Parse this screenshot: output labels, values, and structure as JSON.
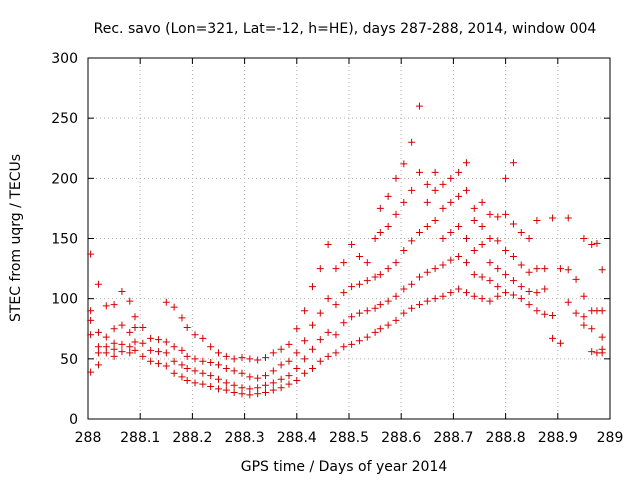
{
  "chart_data": {
    "type": "scatter",
    "title": "Rec. savo (Lon=321, Lat=-12, h=HE), days 287-288, 2014, window 004",
    "xlabel": "GPS time / Days of year 2014",
    "ylabel": "STEC from uqrg / TECUs",
    "xlim": [
      288,
      289
    ],
    "ylim": [
      0,
      300
    ],
    "xticks": [
      288,
      288.1,
      288.2,
      288.3,
      288.4,
      288.5,
      288.6,
      288.7,
      288.8,
      288.9,
      289
    ],
    "xtick_labels": [
      "288",
      "288.1",
      "288.2",
      "288.3",
      "288.4",
      "288.5",
      "288.6",
      "288.7",
      "288.8",
      "288.9",
      "289"
    ],
    "yticks": [
      0,
      50,
      100,
      150,
      200,
      250,
      300
    ],
    "ytick_labels": [
      "0",
      "50",
      "100",
      "150",
      "200",
      "250",
      "300"
    ],
    "grid": true,
    "marker": "+",
    "color": "#d40000",
    "series": [
      {
        "points": [
          [
            288.005,
            137
          ],
          [
            288.005,
            90
          ],
          [
            288.005,
            82
          ],
          [
            288.005,
            70
          ],
          [
            288.005,
            39
          ],
          [
            288.02,
            112
          ],
          [
            288.02,
            72
          ],
          [
            288.02,
            60
          ],
          [
            288.02,
            55
          ],
          [
            288.02,
            45
          ],
          [
            288.035,
            94
          ],
          [
            288.035,
            68
          ],
          [
            288.035,
            60
          ],
          [
            288.035,
            55
          ],
          [
            288.05,
            95
          ],
          [
            288.05,
            75
          ],
          [
            288.05,
            63
          ],
          [
            288.05,
            58
          ],
          [
            288.05,
            52
          ],
          [
            288.065,
            106
          ],
          [
            288.065,
            78
          ],
          [
            288.065,
            62
          ],
          [
            288.065,
            56
          ],
          [
            288.08,
            98
          ],
          [
            288.08,
            72
          ],
          [
            288.08,
            60
          ],
          [
            288.08,
            55
          ],
          [
            288.09,
            85
          ],
          [
            288.09,
            76
          ],
          [
            288.09,
            64
          ],
          [
            288.09,
            57
          ],
          [
            288.105,
            76
          ],
          [
            288.105,
            63
          ],
          [
            288.105,
            52
          ],
          [
            288.12,
            67
          ],
          [
            288.12,
            57
          ],
          [
            288.12,
            48
          ],
          [
            288.135,
            66
          ],
          [
            288.135,
            56
          ],
          [
            288.135,
            46
          ],
          [
            288.15,
            97
          ],
          [
            288.15,
            64
          ],
          [
            288.15,
            55
          ],
          [
            288.15,
            44
          ],
          [
            288.165,
            93
          ],
          [
            288.165,
            60
          ],
          [
            288.165,
            48
          ],
          [
            288.165,
            38
          ],
          [
            288.18,
            84
          ],
          [
            288.18,
            57
          ],
          [
            288.18,
            45
          ],
          [
            288.18,
            35
          ],
          [
            288.19,
            76
          ],
          [
            288.19,
            52
          ],
          [
            288.19,
            42
          ],
          [
            288.19,
            32
          ],
          [
            288.205,
            70
          ],
          [
            288.205,
            50
          ],
          [
            288.205,
            40
          ],
          [
            288.205,
            30
          ],
          [
            288.22,
            67
          ],
          [
            288.22,
            48
          ],
          [
            288.22,
            38
          ],
          [
            288.22,
            29
          ],
          [
            288.235,
            60
          ],
          [
            288.235,
            47
          ],
          [
            288.235,
            36
          ],
          [
            288.235,
            27
          ],
          [
            288.25,
            55
          ],
          [
            288.25,
            45
          ],
          [
            288.25,
            33
          ],
          [
            288.25,
            25
          ],
          [
            288.265,
            52
          ],
          [
            288.265,
            42
          ],
          [
            288.265,
            30
          ],
          [
            288.265,
            24
          ],
          [
            288.28,
            50
          ],
          [
            288.28,
            40
          ],
          [
            288.28,
            28
          ],
          [
            288.28,
            22
          ],
          [
            288.295,
            51
          ],
          [
            288.295,
            38
          ],
          [
            288.295,
            26
          ],
          [
            288.295,
            21
          ],
          [
            288.31,
            50
          ],
          [
            288.31,
            35
          ],
          [
            288.31,
            25
          ],
          [
            288.31,
            20
          ],
          [
            288.325,
            49
          ],
          [
            288.325,
            34
          ],
          [
            288.325,
            26
          ],
          [
            288.325,
            21
          ],
          [
            288.34,
            51
          ],
          [
            288.34,
            36
          ],
          [
            288.34,
            28
          ],
          [
            288.34,
            22
          ],
          [
            288.355,
            55
          ],
          [
            288.355,
            40
          ],
          [
            288.355,
            30
          ],
          [
            288.355,
            24
          ],
          [
            288.37,
            58
          ],
          [
            288.37,
            45
          ],
          [
            288.37,
            33
          ],
          [
            288.37,
            26
          ],
          [
            288.385,
            62
          ],
          [
            288.385,
            48
          ],
          [
            288.385,
            36
          ],
          [
            288.385,
            29
          ],
          [
            288.4,
            75
          ],
          [
            288.4,
            55
          ],
          [
            288.4,
            42
          ],
          [
            288.4,
            32
          ],
          [
            288.415,
            90
          ],
          [
            288.415,
            65
          ],
          [
            288.415,
            50
          ],
          [
            288.415,
            38
          ],
          [
            288.43,
            110
          ],
          [
            288.43,
            78
          ],
          [
            288.43,
            58
          ],
          [
            288.43,
            42
          ],
          [
            288.445,
            125
          ],
          [
            288.445,
            88
          ],
          [
            288.445,
            66
          ],
          [
            288.445,
            48
          ],
          [
            288.46,
            145
          ],
          [
            288.46,
            100
          ],
          [
            288.46,
            72
          ],
          [
            288.46,
            52
          ],
          [
            288.475,
            125
          ],
          [
            288.475,
            95
          ],
          [
            288.475,
            70
          ],
          [
            288.475,
            55
          ],
          [
            288.49,
            130
          ],
          [
            288.49,
            105
          ],
          [
            288.49,
            80
          ],
          [
            288.49,
            60
          ],
          [
            288.505,
            145
          ],
          [
            288.505,
            110
          ],
          [
            288.505,
            85
          ],
          [
            288.505,
            62
          ],
          [
            288.52,
            135
          ],
          [
            288.52,
            112
          ],
          [
            288.52,
            88
          ],
          [
            288.52,
            65
          ],
          [
            288.535,
            130
          ],
          [
            288.535,
            115
          ],
          [
            288.535,
            90
          ],
          [
            288.535,
            68
          ],
          [
            288.55,
            150
          ],
          [
            288.55,
            118
          ],
          [
            288.55,
            92
          ],
          [
            288.55,
            72
          ],
          [
            288.56,
            175
          ],
          [
            288.56,
            155
          ],
          [
            288.56,
            120
          ],
          [
            288.56,
            95
          ],
          [
            288.56,
            75
          ],
          [
            288.575,
            185
          ],
          [
            288.575,
            160
          ],
          [
            288.575,
            125
          ],
          [
            288.575,
            98
          ],
          [
            288.575,
            78
          ],
          [
            288.59,
            200
          ],
          [
            288.59,
            170
          ],
          [
            288.59,
            130
          ],
          [
            288.59,
            102
          ],
          [
            288.59,
            82
          ],
          [
            288.605,
            212
          ],
          [
            288.605,
            180
          ],
          [
            288.605,
            140
          ],
          [
            288.605,
            108
          ],
          [
            288.605,
            88
          ],
          [
            288.62,
            230
          ],
          [
            288.62,
            190
          ],
          [
            288.62,
            148
          ],
          [
            288.62,
            112
          ],
          [
            288.62,
            92
          ],
          [
            288.635,
            260
          ],
          [
            288.635,
            205
          ],
          [
            288.635,
            155
          ],
          [
            288.635,
            118
          ],
          [
            288.635,
            95
          ],
          [
            288.65,
            195
          ],
          [
            288.65,
            180
          ],
          [
            288.65,
            160
          ],
          [
            288.65,
            122
          ],
          [
            288.65,
            98
          ],
          [
            288.665,
            205
          ],
          [
            288.665,
            190
          ],
          [
            288.665,
            165
          ],
          [
            288.665,
            125
          ],
          [
            288.665,
            100
          ],
          [
            288.68,
            195
          ],
          [
            288.68,
            175
          ],
          [
            288.68,
            150
          ],
          [
            288.68,
            128
          ],
          [
            288.68,
            102
          ],
          [
            288.695,
            200
          ],
          [
            288.695,
            180
          ],
          [
            288.695,
            155
          ],
          [
            288.695,
            132
          ],
          [
            288.695,
            105
          ],
          [
            288.71,
            205
          ],
          [
            288.71,
            185
          ],
          [
            288.71,
            160
          ],
          [
            288.71,
            135
          ],
          [
            288.71,
            108
          ],
          [
            288.725,
            213
          ],
          [
            288.725,
            190
          ],
          [
            288.725,
            150
          ],
          [
            288.725,
            130
          ],
          [
            288.725,
            105
          ],
          [
            288.74,
            175
          ],
          [
            288.74,
            165
          ],
          [
            288.74,
            140
          ],
          [
            288.74,
            120
          ],
          [
            288.74,
            102
          ],
          [
            288.755,
            180
          ],
          [
            288.755,
            160
          ],
          [
            288.755,
            145
          ],
          [
            288.755,
            118
          ],
          [
            288.755,
            100
          ],
          [
            288.77,
            170
          ],
          [
            288.77,
            150
          ],
          [
            288.77,
            130
          ],
          [
            288.77,
            115
          ],
          [
            288.77,
            98
          ],
          [
            288.785,
            168
          ],
          [
            288.785,
            148
          ],
          [
            288.785,
            125
          ],
          [
            288.785,
            110
          ],
          [
            288.785,
            102
          ],
          [
            288.8,
            200
          ],
          [
            288.8,
            170
          ],
          [
            288.8,
            140
          ],
          [
            288.8,
            120
          ],
          [
            288.8,
            105
          ],
          [
            288.815,
            213
          ],
          [
            288.815,
            162
          ],
          [
            288.815,
            135
          ],
          [
            288.815,
            115
          ],
          [
            288.815,
            103
          ],
          [
            288.83,
            155
          ],
          [
            288.83,
            128
          ],
          [
            288.83,
            110
          ],
          [
            288.83,
            100
          ],
          [
            288.845,
            150
          ],
          [
            288.845,
            122
          ],
          [
            288.845,
            106
          ],
          [
            288.845,
            95
          ],
          [
            288.86,
            165
          ],
          [
            288.86,
            125
          ],
          [
            288.86,
            105
          ],
          [
            288.86,
            90
          ],
          [
            288.875,
            125
          ],
          [
            288.875,
            108
          ],
          [
            288.875,
            87
          ],
          [
            288.89,
            167
          ],
          [
            288.89,
            86
          ],
          [
            288.89,
            67
          ],
          [
            288.905,
            125
          ],
          [
            288.905,
            63
          ],
          [
            288.92,
            167
          ],
          [
            288.92,
            124
          ],
          [
            288.92,
            97
          ],
          [
            288.935,
            116
          ],
          [
            288.935,
            88
          ],
          [
            288.95,
            150
          ],
          [
            288.95,
            102
          ],
          [
            288.95,
            85
          ],
          [
            288.95,
            78
          ],
          [
            288.965,
            145
          ],
          [
            288.965,
            90
          ],
          [
            288.965,
            75
          ],
          [
            288.965,
            56
          ],
          [
            288.975,
            146
          ],
          [
            288.975,
            90
          ],
          [
            288.975,
            55
          ],
          [
            288.985,
            124
          ],
          [
            288.985,
            90
          ],
          [
            288.985,
            68
          ],
          [
            288.985,
            58
          ],
          [
            288.985,
            55
          ]
        ]
      }
    ]
  }
}
